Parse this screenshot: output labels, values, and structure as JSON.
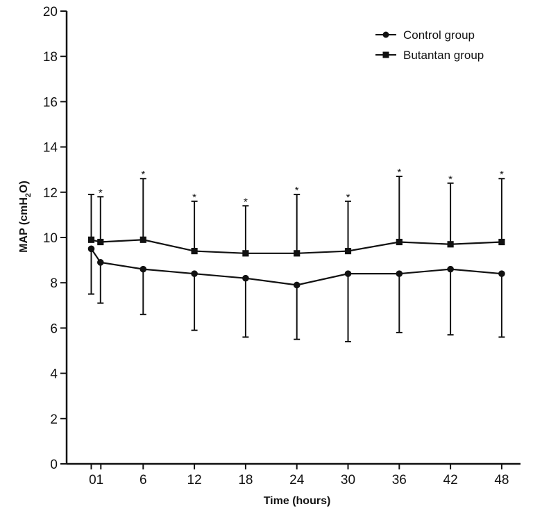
{
  "chart_data": {
    "type": "line",
    "xlabel": "Time (hours)",
    "ylabel_main": "MAP (cmH",
    "ylabel_sub": "2",
    "ylabel_end": "O)",
    "ylim": [
      0,
      20
    ],
    "yticks": [
      "0",
      "2",
      "4",
      "6",
      "8",
      "10",
      "12",
      "14",
      "16",
      "18",
      "20"
    ],
    "categories": [
      "0",
      "1",
      "6",
      "12",
      "18",
      "24",
      "30",
      "36",
      "42",
      "48"
    ],
    "xtick_labels": [
      "01",
      "6",
      "12",
      "18",
      "24",
      "30",
      "36",
      "42",
      "48"
    ],
    "series": [
      {
        "name": "Control group",
        "marker": "circle",
        "values": [
          9.5,
          8.9,
          8.6,
          8.4,
          8.2,
          7.9,
          8.4,
          8.4,
          8.6,
          8.4
        ],
        "error_lower": [
          7.5,
          7.1,
          6.6,
          5.9,
          5.6,
          5.5,
          5.4,
          5.8,
          5.7,
          5.6
        ]
      },
      {
        "name": "Butantan group",
        "marker": "square",
        "values": [
          9.9,
          9.8,
          9.9,
          9.4,
          9.3,
          9.3,
          9.4,
          9.8,
          9.7,
          9.8
        ],
        "error_upper": [
          11.9,
          11.8,
          12.6,
          11.6,
          11.4,
          11.9,
          11.6,
          12.7,
          12.4,
          12.6
        ]
      }
    ],
    "significance_marker": "*",
    "significant_categories": [
      "1",
      "6",
      "12",
      "18",
      "24",
      "30",
      "36",
      "42",
      "48"
    ],
    "legend_position": "top-right",
    "grid": false,
    "colors": {
      "line": "#111111",
      "background": "#ffffff"
    }
  }
}
